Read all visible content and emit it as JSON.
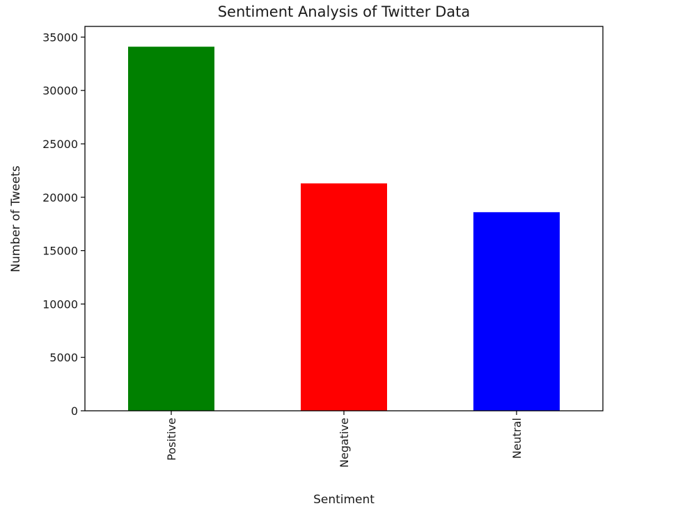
{
  "chart_data": {
    "type": "bar",
    "title": "Sentiment Analysis of Twitter Data",
    "xlabel": "Sentiment",
    "ylabel": "Number of Tweets",
    "categories": [
      "Positive",
      "Negative",
      "Neutral"
    ],
    "values": [
      34100,
      21300,
      18600
    ],
    "colors": [
      "#008000",
      "#ff0000",
      "#0000ff"
    ],
    "ylim": [
      0,
      36000
    ],
    "yticks": [
      0,
      5000,
      10000,
      15000,
      20000,
      25000,
      30000,
      35000
    ],
    "grid": false,
    "legend": "none"
  }
}
